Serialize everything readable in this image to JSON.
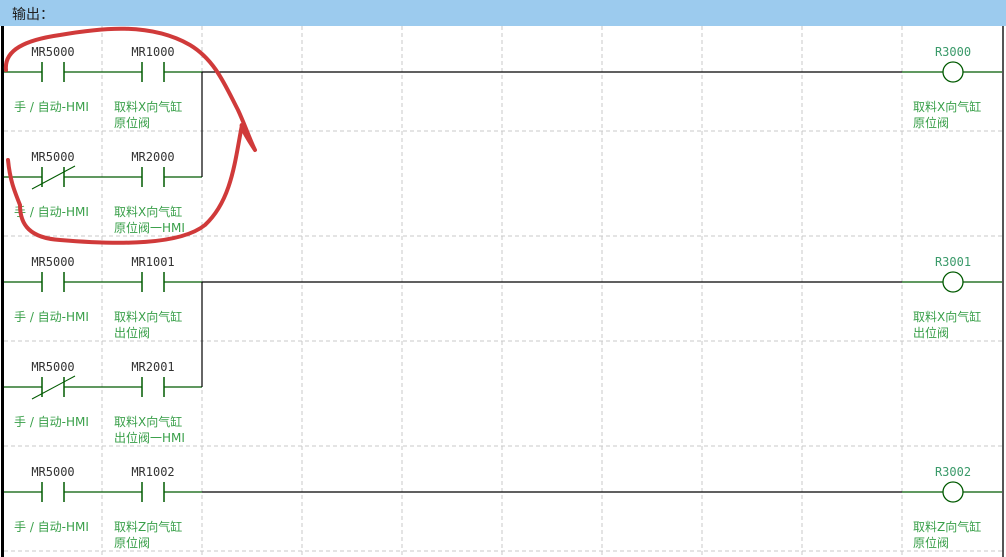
{
  "header": {
    "title": "输出："
  },
  "colors": {
    "header_bg": "#9ccbee",
    "wire": "#005a00",
    "comment": "#3aa04a",
    "annotation": "#d03a3a"
  },
  "rungs": [
    {
      "branches": [
        {
          "contacts": [
            {
              "address": "MR5000",
              "type": "NO",
              "comment": [
                "手 / 自动-HMI"
              ]
            },
            {
              "address": "MR1000",
              "type": "NO",
              "comment": [
                "取料X向气缸",
                "原位阀"
              ]
            }
          ]
        },
        {
          "contacts": [
            {
              "address": "MR5000",
              "type": "NC",
              "comment": [
                "手 / 自动-HMI"
              ]
            },
            {
              "address": "MR2000",
              "type": "NO",
              "comment": [
                "取料X向气缸",
                "原位阀一HMI"
              ]
            }
          ]
        }
      ],
      "coil": {
        "address": "R3000",
        "comment": [
          "取料X向气缸",
          "原位阀"
        ]
      }
    },
    {
      "branches": [
        {
          "contacts": [
            {
              "address": "MR5000",
              "type": "NO",
              "comment": [
                "手 / 自动-HMI"
              ]
            },
            {
              "address": "MR1001",
              "type": "NO",
              "comment": [
                "取料X向气缸",
                "出位阀"
              ]
            }
          ]
        },
        {
          "contacts": [
            {
              "address": "MR5000",
              "type": "NC",
              "comment": [
                "手 / 自动-HMI"
              ]
            },
            {
              "address": "MR2001",
              "type": "NO",
              "comment": [
                "取料X向气缸",
                "出位阀一HMI"
              ]
            }
          ]
        }
      ],
      "coil": {
        "address": "R3001",
        "comment": [
          "取料X向气缸",
          "出位阀"
        ]
      }
    },
    {
      "branches": [
        {
          "contacts": [
            {
              "address": "MR5000",
              "type": "NO",
              "comment": [
                "手 / 自动-HMI"
              ]
            },
            {
              "address": "MR1002",
              "type": "NO",
              "comment": [
                "取料Z向气缸",
                "原位阀"
              ]
            }
          ]
        }
      ],
      "coil": {
        "address": "R3002",
        "comment": [
          "取料Z向气缸",
          "原位阀"
        ]
      }
    }
  ]
}
